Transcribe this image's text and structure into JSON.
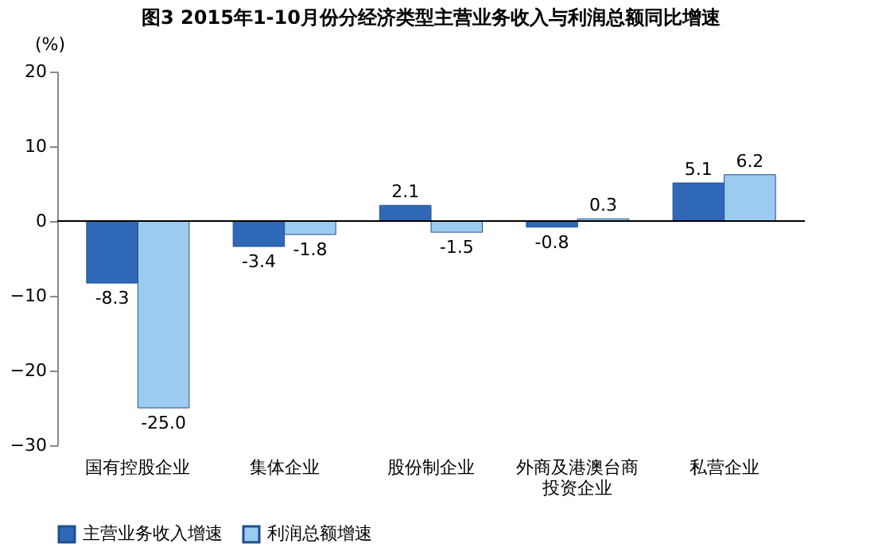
{
  "chart_data": {
    "type": "bar",
    "title": "图3 2015年1-10月份分经济类型主营业务收入与利润总额同比增速",
    "ylabel": "(%)",
    "categories": [
      "国有控股企业",
      "集体企业",
      "股份制企业",
      "外商及港澳台商投资企业",
      "私营企业"
    ],
    "series": [
      {
        "name": "主营业务收入增速",
        "color": "#3068b8",
        "values": [
          -8.3,
          -3.4,
          2.1,
          -0.8,
          5.1
        ],
        "value_labels": [
          "-8.3",
          "-3.4",
          "2.1",
          "-0.8",
          "5.1"
        ]
      },
      {
        "name": "利润总额增速",
        "color": "#9ccbf0",
        "values": [
          -25.0,
          -1.8,
          -1.5,
          0.3,
          6.2
        ],
        "value_labels": [
          "-25.0",
          "-1.8",
          "-1.5",
          "0.3",
          "6.2"
        ]
      }
    ],
    "ylim": [
      -30,
      20
    ],
    "yticks": [
      -30,
      -20,
      -10,
      0,
      10,
      20
    ],
    "ref_lines": [
      {
        "axis": "y",
        "value": 0,
        "color": "#000000"
      }
    ],
    "legend": "bottom"
  }
}
